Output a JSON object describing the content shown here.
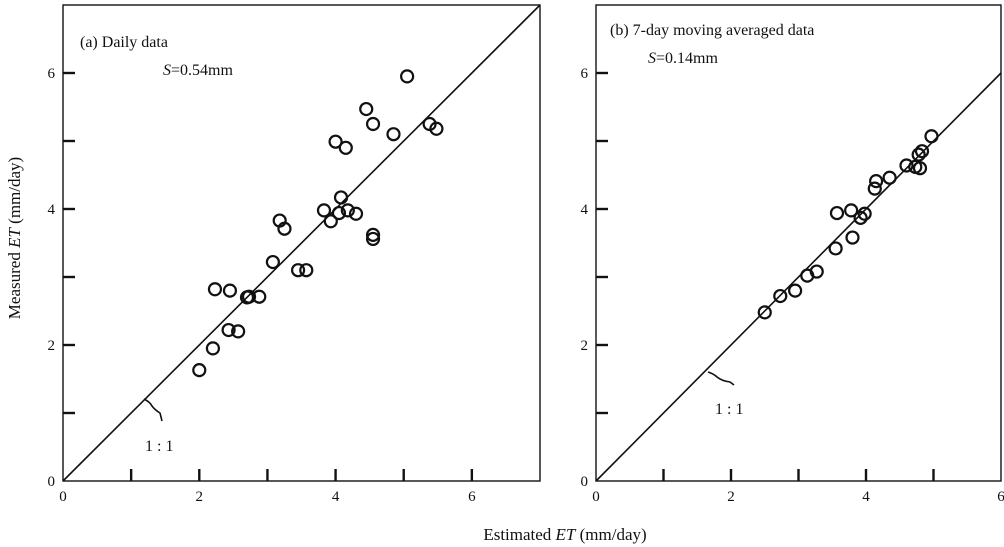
{
  "y_axis_title_pre": "Measured ",
  "y_axis_title_var": "ET",
  "y_axis_title_post": " (mm/day)",
  "x_axis_title_pre": "Estimated ",
  "x_axis_title_var": "ET",
  "x_axis_title_post": " (mm/day)",
  "chart_data": [
    {
      "type": "scatter",
      "title": "(a) Daily data",
      "s_label": "S",
      "s_value": "=0.54mm",
      "line_label": "1 : 1",
      "xlim": [
        0,
        7
      ],
      "ylim": [
        0,
        7
      ],
      "x_tick_labels": [
        "0",
        "2",
        "4",
        "6"
      ],
      "y_tick_labels": [
        "0",
        "2",
        "4",
        "6"
      ],
      "grid": false,
      "reference_line": "1:1",
      "points": [
        {
          "x": 2.0,
          "y": 1.63
        },
        {
          "x": 2.2,
          "y": 1.95
        },
        {
          "x": 2.23,
          "y": 2.82
        },
        {
          "x": 2.43,
          "y": 2.22
        },
        {
          "x": 2.45,
          "y": 2.8
        },
        {
          "x": 2.57,
          "y": 2.2
        },
        {
          "x": 2.7,
          "y": 2.7
        },
        {
          "x": 2.73,
          "y": 2.71
        },
        {
          "x": 2.88,
          "y": 2.71
        },
        {
          "x": 3.08,
          "y": 3.22
        },
        {
          "x": 3.18,
          "y": 3.83
        },
        {
          "x": 3.25,
          "y": 3.71
        },
        {
          "x": 3.45,
          "y": 3.1
        },
        {
          "x": 3.57,
          "y": 3.1
        },
        {
          "x": 3.83,
          "y": 3.98
        },
        {
          "x": 3.93,
          "y": 3.82
        },
        {
          "x": 4.0,
          "y": 4.99
        },
        {
          "x": 4.05,
          "y": 3.94
        },
        {
          "x": 4.08,
          "y": 4.17
        },
        {
          "x": 4.15,
          "y": 4.9
        },
        {
          "x": 4.18,
          "y": 3.98
        },
        {
          "x": 4.3,
          "y": 3.93
        },
        {
          "x": 4.45,
          "y": 5.47
        },
        {
          "x": 4.55,
          "y": 5.25
        },
        {
          "x": 4.55,
          "y": 3.62
        },
        {
          "x": 4.55,
          "y": 3.56
        },
        {
          "x": 4.85,
          "y": 5.1
        },
        {
          "x": 5.05,
          "y": 5.95
        },
        {
          "x": 5.38,
          "y": 5.25
        },
        {
          "x": 5.48,
          "y": 5.18
        }
      ]
    },
    {
      "type": "scatter",
      "title": "(b) 7-day moving averaged data",
      "s_label": "S",
      "s_value": "=0.14mm",
      "line_label": "1 : 1",
      "xlim": [
        0,
        6
      ],
      "ylim": [
        0,
        7
      ],
      "x_tick_labels": [
        "0",
        "2",
        "4",
        "6"
      ],
      "y_tick_labels": [
        "0",
        "2",
        "4",
        "6"
      ],
      "grid": false,
      "reference_line": "1:1",
      "points": [
        {
          "x": 2.5,
          "y": 2.48
        },
        {
          "x": 2.73,
          "y": 2.72
        },
        {
          "x": 2.95,
          "y": 2.8
        },
        {
          "x": 3.13,
          "y": 3.02
        },
        {
          "x": 3.27,
          "y": 3.08
        },
        {
          "x": 3.55,
          "y": 3.42
        },
        {
          "x": 3.57,
          "y": 3.94
        },
        {
          "x": 3.78,
          "y": 3.98
        },
        {
          "x": 3.8,
          "y": 3.58
        },
        {
          "x": 3.92,
          "y": 3.87
        },
        {
          "x": 3.98,
          "y": 3.93
        },
        {
          "x": 4.13,
          "y": 4.3
        },
        {
          "x": 4.15,
          "y": 4.41
        },
        {
          "x": 4.35,
          "y": 4.46
        },
        {
          "x": 4.6,
          "y": 4.64
        },
        {
          "x": 4.73,
          "y": 4.62
        },
        {
          "x": 4.78,
          "y": 4.8
        },
        {
          "x": 4.8,
          "y": 4.6
        },
        {
          "x": 4.83,
          "y": 4.85
        },
        {
          "x": 4.97,
          "y": 5.07
        }
      ]
    }
  ]
}
